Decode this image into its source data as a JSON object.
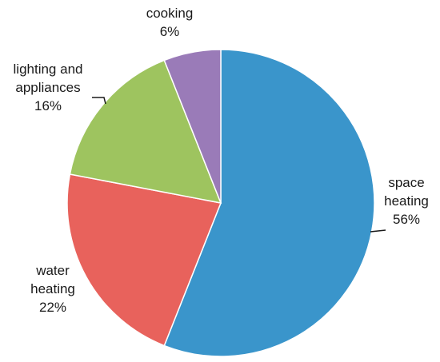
{
  "chart_data": {
    "type": "pie",
    "title": "",
    "start_angle_deg": 0,
    "direction": "clockwise",
    "slices": [
      {
        "label_lines": [
          "space",
          "heating"
        ],
        "percent_label": "56%",
        "value": 56,
        "color": "#3a95cb"
      },
      {
        "label_lines": [
          "water",
          "heating"
        ],
        "percent_label": "22%",
        "value": 22,
        "color": "#e8625c"
      },
      {
        "label_lines": [
          "lighting and",
          "appliances"
        ],
        "percent_label": "16%",
        "value": 16,
        "color": "#9ec45f"
      },
      {
        "label_lines": [
          "cooking"
        ],
        "percent_label": "6%",
        "value": 6,
        "color": "#9a7bb8"
      }
    ]
  }
}
